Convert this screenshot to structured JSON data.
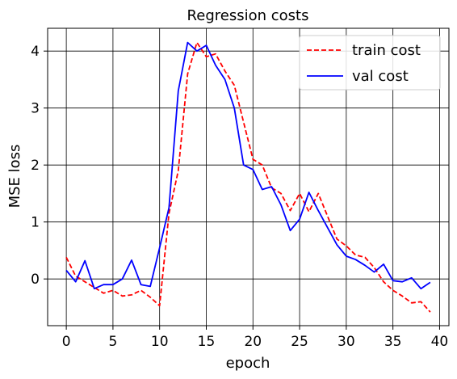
{
  "chart_data": {
    "type": "line",
    "title": "Regression costs",
    "xlabel": "epoch",
    "ylabel": "MSE loss",
    "xlim": [
      -2,
      41
    ],
    "ylim": [
      -0.82,
      4.4
    ],
    "xticks": [
      0,
      5,
      10,
      15,
      20,
      25,
      30,
      35,
      40
    ],
    "yticks": [
      0,
      1,
      2,
      3,
      4
    ],
    "grid": true,
    "legend_position": "top-right",
    "x": [
      0,
      1,
      2,
      3,
      4,
      5,
      6,
      7,
      8,
      9,
      10,
      11,
      12,
      13,
      14,
      15,
      16,
      17,
      18,
      19,
      20,
      21,
      22,
      23,
      24,
      25,
      26,
      27,
      28,
      29,
      30,
      31,
      32,
      33,
      34,
      35,
      36,
      37,
      38,
      39
    ],
    "series": [
      {
        "name": "train cost",
        "color": "#ff0000",
        "style": "dashed",
        "values": [
          0.38,
          0.05,
          -0.05,
          -0.15,
          -0.25,
          -0.2,
          -0.3,
          -0.28,
          -0.2,
          -0.32,
          -0.47,
          1.15,
          1.9,
          3.6,
          4.15,
          3.9,
          3.95,
          3.65,
          3.4,
          2.75,
          2.1,
          2.0,
          1.6,
          1.5,
          1.2,
          1.5,
          1.18,
          1.5,
          1.1,
          0.7,
          0.58,
          0.42,
          0.38,
          0.2,
          -0.05,
          -0.2,
          -0.3,
          -0.42,
          -0.4,
          -0.58
        ]
      },
      {
        "name": "val cost",
        "color": "#0000ff",
        "style": "solid",
        "values": [
          0.15,
          -0.05,
          0.32,
          -0.17,
          -0.1,
          -0.1,
          0.0,
          0.33,
          -0.1,
          -0.13,
          0.55,
          1.25,
          3.3,
          4.15,
          4.0,
          4.1,
          3.75,
          3.5,
          3.0,
          2.0,
          1.92,
          1.57,
          1.62,
          1.3,
          0.85,
          1.05,
          1.52,
          1.2,
          0.9,
          0.6,
          0.4,
          0.34,
          0.24,
          0.12,
          0.26,
          -0.03,
          -0.05,
          0.02,
          -0.17,
          -0.06
        ]
      }
    ]
  }
}
